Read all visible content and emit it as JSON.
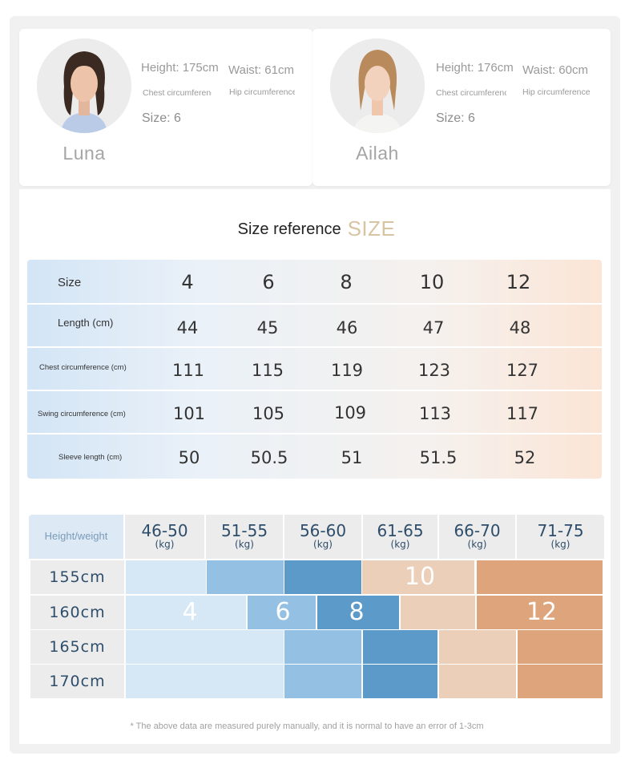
{
  "models": [
    {
      "name": "Luna",
      "height": "Height: 175cm",
      "waist": "Waist: 61cm",
      "chest": "Chest circumference",
      "hip": "Hip circumference",
      "size": "Size: 6"
    },
    {
      "name": "Ailah",
      "height": "Height: 176cm",
      "waist": "Waist: 60cm",
      "chest": "Chest circumference",
      "hip": "Hip circumference",
      "size": "Size: 6"
    }
  ],
  "title": {
    "text": "Size reference",
    "accent": "SIZE"
  },
  "size_table": {
    "rows": [
      {
        "label": "Size",
        "values": [
          "4",
          "6",
          "8",
          "10",
          "12"
        ]
      },
      {
        "label": "Length (cm)",
        "values": [
          "44",
          "45",
          "46",
          "47",
          "48"
        ]
      },
      {
        "label": "Chest circumference (cm)",
        "values": [
          "111",
          "115",
          "119",
          "123",
          "127"
        ]
      },
      {
        "label": "Swing circumference (cm)",
        "values": [
          "101",
          "105",
          "109",
          "113",
          "117"
        ]
      },
      {
        "label": "Sleeve length (cm)",
        "values": [
          "50",
          "50.5",
          "51",
          "51.5",
          "52"
        ]
      }
    ]
  },
  "hw_table": {
    "corner_label": "Height/weight",
    "weights": [
      "46-50",
      "51-55",
      "56-60",
      "61-65",
      "66-70",
      "71-75"
    ],
    "unit": "(kg)",
    "heights": [
      "155cm",
      "160cm",
      "165cm",
      "170cm"
    ],
    "size_labels": [
      "4",
      "6",
      "8",
      "10",
      "12"
    ],
    "colors": {
      "size4": "#d6e8f6",
      "size6": "#94c1e3",
      "size8": "#5b9ac9",
      "size10": "#ebcfb9",
      "size12": "#dea47b"
    }
  },
  "footnote": "* The above data are measured purely manually, and it is normal to have an error of 1-3cm"
}
